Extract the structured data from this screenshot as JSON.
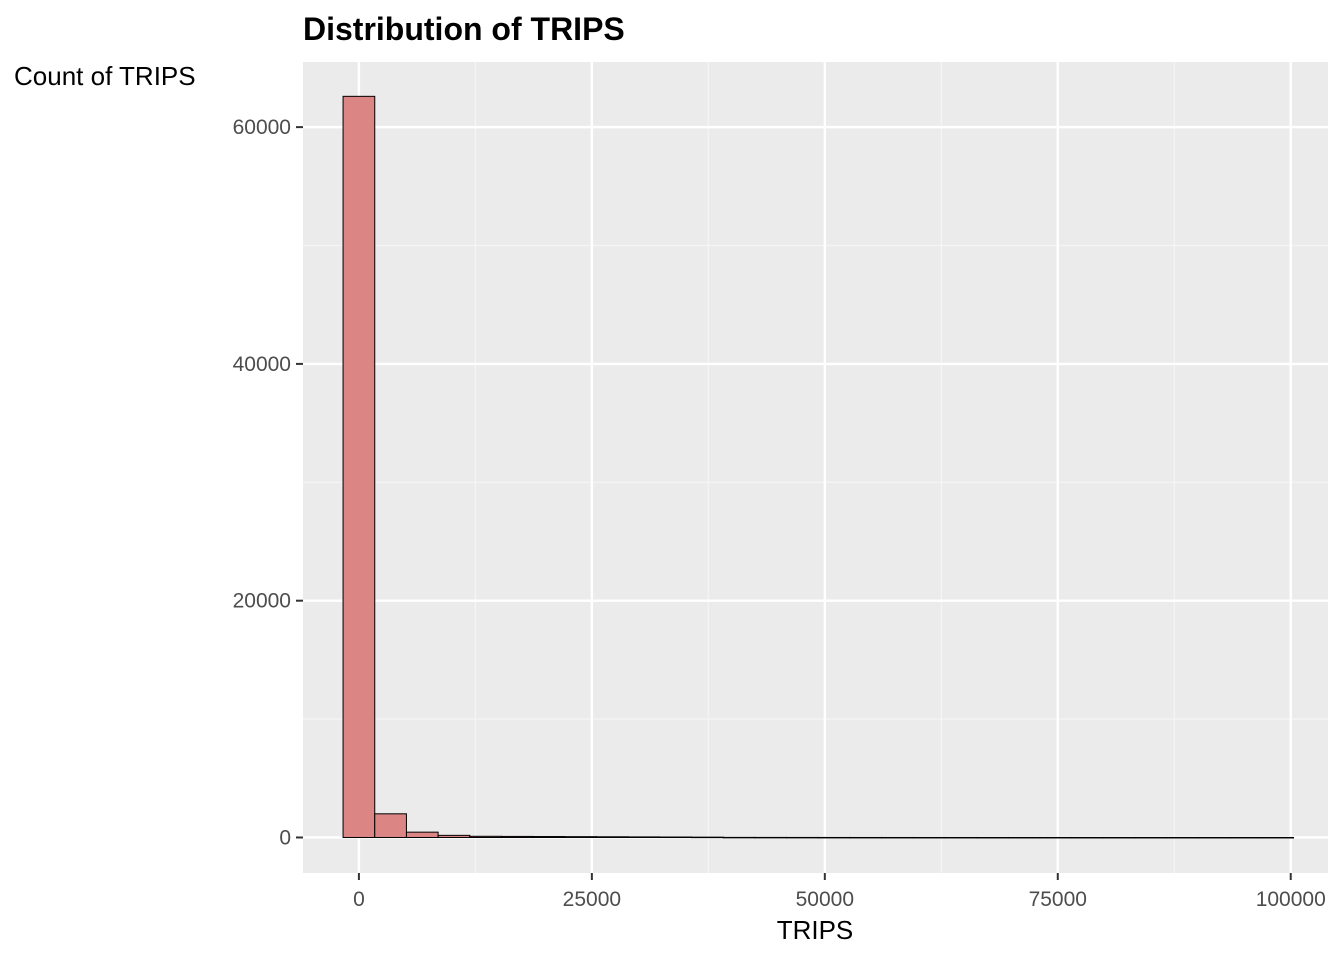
{
  "chart_data": {
    "type": "bar",
    "title": "Distribution of TRIPS",
    "xlabel": "TRIPS",
    "ylabel": "Count of TRIPS",
    "xlim": [
      -6000,
      104000
    ],
    "ylim": [
      -3000,
      65500
    ],
    "x_ticks": [
      0,
      25000,
      50000,
      75000,
      100000
    ],
    "x_tick_labels": [
      "0",
      "25000",
      "50000",
      "75000",
      "100000"
    ],
    "y_ticks": [
      0,
      20000,
      40000,
      60000
    ],
    "y_tick_labels": [
      "0",
      "20000",
      "40000",
      "60000"
    ],
    "bin_width": 3400,
    "bin_start": -1700,
    "values": [
      62600,
      2000,
      450,
      180,
      100,
      90,
      80,
      70,
      60,
      50,
      40,
      30,
      12,
      10,
      8,
      6,
      5,
      4,
      3,
      3,
      2,
      2,
      2,
      1,
      1,
      1,
      1,
      1,
      1,
      1
    ],
    "grid": true,
    "legend": "none",
    "colors": {
      "panel_background": "#ebebeb",
      "grid_major": "#ffffff",
      "grid_minor": "#f5f5f5",
      "bar_fill": "#dc8585",
      "bar_outline": "#000000",
      "tick_mark": "#333333"
    }
  }
}
